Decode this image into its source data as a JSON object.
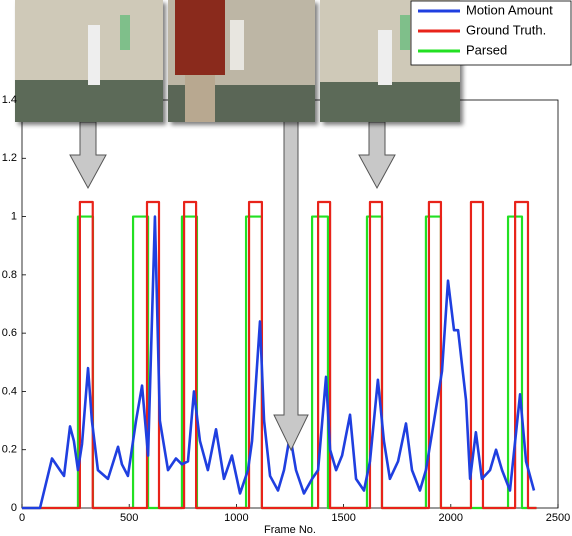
{
  "chart_data": {
    "type": "line",
    "xlabel": "Frame No.",
    "xlim": [
      0,
      2500
    ],
    "xticks": [
      0,
      500,
      1000,
      1500,
      2000,
      2500
    ],
    "ylim": [
      0,
      1.4
    ],
    "yticks": [
      0,
      0.2,
      0.4,
      0.6,
      0.8,
      1,
      1.2,
      1.4
    ],
    "legend": "upper right",
    "series": [
      {
        "name": "Motion Amount",
        "color": "#1f3fe0",
        "x": [
          0,
          84,
          140,
          177,
          196,
          224,
          242,
          261,
          280,
          308,
          326,
          354,
          401,
          448,
          466,
          494,
          532,
          560,
          588,
          620,
          643,
          681,
          718,
          746,
          774,
          802,
          830,
          867,
          905,
          942,
          979,
          1017,
          1054,
          1073,
          1110,
          1129,
          1157,
          1194,
          1222,
          1250,
          1278,
          1315,
          1353,
          1381,
          1418,
          1437,
          1465,
          1493,
          1530,
          1558,
          1595,
          1623,
          1660,
          1688,
          1716,
          1754,
          1791,
          1819,
          1856,
          1884,
          1922,
          1959,
          1987,
          2015,
          2034,
          2071,
          2090,
          2117,
          2145,
          2183,
          2211,
          2239,
          2276,
          2323,
          2351,
          2388
        ],
        "values": [
          0,
          0,
          0.17,
          0.13,
          0.11,
          0.28,
          0.23,
          0.13,
          0.22,
          0.48,
          0.3,
          0.13,
          0.1,
          0.21,
          0.15,
          0.11,
          0.3,
          0.42,
          0.18,
          1.0,
          0.3,
          0.13,
          0.17,
          0.15,
          0.16,
          0.4,
          0.23,
          0.13,
          0.27,
          0.1,
          0.18,
          0.05,
          0.13,
          0.23,
          0.64,
          0.3,
          0.11,
          0.06,
          0.13,
          0.25,
          0.13,
          0.05,
          0.1,
          0.13,
          0.45,
          0.2,
          0.13,
          0.18,
          0.32,
          0.1,
          0.06,
          0.16,
          0.44,
          0.23,
          0.1,
          0.16,
          0.29,
          0.13,
          0.06,
          0.13,
          0.3,
          0.47,
          0.78,
          0.61,
          0.61,
          0.37,
          0.1,
          0.26,
          0.1,
          0.13,
          0.2,
          0.13,
          0.06,
          0.39,
          0.16,
          0.06
        ]
      },
      {
        "name": "Ground Truth.",
        "color": "#e8231a",
        "x": [
          0,
          270,
          270,
          330,
          330,
          583,
          583,
          639,
          639,
          756,
          756,
          812,
          812,
          1059,
          1059,
          1119,
          1119,
          1381,
          1381,
          1437,
          1437,
          1623,
          1623,
          1679,
          1679,
          1898,
          1898,
          1954,
          1954,
          2094,
          2094,
          2150,
          2150,
          2300,
          2300,
          2360,
          2360,
          2400
        ],
        "values": [
          0,
          0,
          1.05,
          1.05,
          0,
          0,
          1.05,
          1.05,
          0,
          0,
          1.05,
          1.05,
          0,
          0,
          1.05,
          1.05,
          0,
          0,
          1.05,
          1.05,
          0,
          0,
          1.05,
          1.05,
          0,
          0,
          1.05,
          1.05,
          0,
          0,
          1.05,
          1.05,
          0,
          0,
          1.05,
          1.05,
          0,
          0
        ]
      },
      {
        "name": "Parsed",
        "color": "#22e022",
        "x": [
          0,
          261,
          261,
          331,
          331,
          518,
          518,
          588,
          588,
          746,
          746,
          816,
          816,
          1045,
          1045,
          1119,
          1119,
          1353,
          1353,
          1427,
          1427,
          1609,
          1609,
          1679,
          1679,
          1884,
          1884,
          1954,
          1954,
          2267,
          2267,
          2332,
          2332,
          2400
        ],
        "values": [
          0,
          0,
          1,
          1,
          0,
          0,
          1,
          1,
          0,
          0,
          1,
          1,
          0,
          0,
          1,
          1,
          0,
          0,
          1,
          1,
          0,
          0,
          1,
          1,
          0,
          0,
          1,
          1,
          0,
          0,
          1,
          1,
          0,
          0
        ]
      }
    ]
  }
}
